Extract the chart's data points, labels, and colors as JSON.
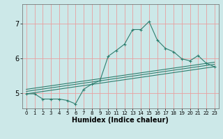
{
  "xlabel": "Humidex (Indice chaleur)",
  "bg_color": "#cce8e8",
  "grid_color": "#e8a0a0",
  "line_color": "#2e7d6e",
  "xlim": [
    -0.5,
    23.5
  ],
  "ylim": [
    4.55,
    7.55
  ],
  "yticks": [
    5,
    6,
    7
  ],
  "xticks": [
    0,
    1,
    2,
    3,
    4,
    5,
    6,
    7,
    8,
    9,
    10,
    11,
    12,
    13,
    14,
    15,
    16,
    17,
    18,
    19,
    20,
    21,
    22,
    23
  ],
  "line1_x": [
    0,
    1,
    2,
    3,
    4,
    5,
    6,
    7,
    8,
    9,
    10,
    11,
    12,
    13,
    14,
    15,
    16,
    17,
    18,
    19,
    20,
    21,
    22,
    23
  ],
  "line1_y": [
    4.97,
    4.97,
    4.82,
    4.82,
    4.82,
    4.78,
    4.68,
    5.1,
    5.25,
    5.35,
    6.05,
    6.22,
    6.4,
    6.82,
    6.82,
    7.05,
    6.52,
    6.28,
    6.18,
    5.98,
    5.92,
    6.07,
    5.85,
    5.75
  ],
  "line2_x": [
    0,
    23
  ],
  "line2_y": [
    4.97,
    5.75
  ],
  "line3_x": [
    0,
    23
  ],
  "line3_y": [
    5.04,
    5.82
  ],
  "line4_x": [
    0,
    23
  ],
  "line4_y": [
    5.1,
    5.88
  ]
}
